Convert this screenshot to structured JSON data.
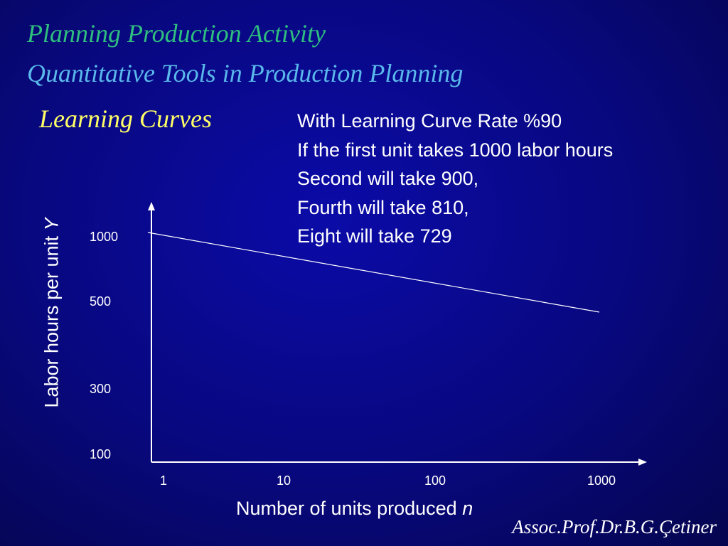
{
  "header": {
    "title": "Planning Production Activity",
    "subtitle": "Quantitative Tools in Production Planning"
  },
  "section_title": "Learning Curves",
  "info_lines": [
    "With Learning Curve Rate %90",
    "If the first unit takes 1000 labor hours",
    "Second will take 900,",
    "Fourth will take 810,",
    "Eight will take 729"
  ],
  "footer": "Assoc.Prof.Dr.B.G.Çetiner",
  "colors": {
    "background": "#08087e",
    "title": "#2fbf7f",
    "subtitle": "#5ab8ea",
    "section": "#ffff66",
    "text": "#ffffff"
  },
  "chart_data": {
    "type": "line",
    "xlabel_text": "Number of units produced",
    "xlabel_var": "n",
    "ylabel_text": "Labor hours per unit",
    "ylabel_var": "Y",
    "x_ticks": [
      "1",
      "10",
      "100",
      "1000"
    ],
    "y_ticks": [
      "1000",
      "500",
      "300",
      "100"
    ],
    "x_scale": "log",
    "xlim": [
      1,
      1000
    ],
    "y_tick_values": [
      1000,
      500,
      300,
      100
    ],
    "series": [
      {
        "x": [
          1,
          1000
        ],
        "y": [
          1000,
          500
        ]
      }
    ],
    "grid": false,
    "legend": "none"
  }
}
